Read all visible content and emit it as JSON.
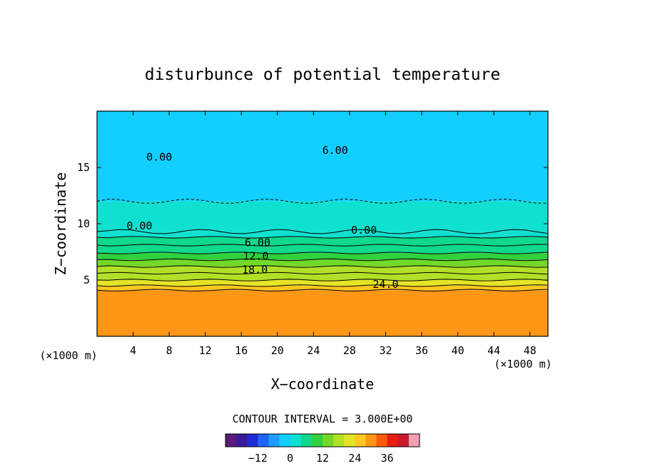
{
  "chart_data": {
    "type": "heatmap",
    "title": "disturbunce of potential temperature",
    "xlabel": "X−coordinate",
    "ylabel": "Z−coordinate",
    "x_unit": "(×1000 m)",
    "y_unit": "(×1000 m)",
    "xlim": [
      0,
      50
    ],
    "ylim": [
      0,
      20
    ],
    "x_ticks": [
      4,
      8,
      12,
      16,
      20,
      24,
      28,
      32,
      36,
      40,
      44,
      48
    ],
    "y_ticks": [
      5,
      10,
      15
    ],
    "contour_interval_text": "CONTOUR INTERVAL = 3.000E+00",
    "contour_labels": [
      {
        "text": "0.00",
        "x": 6.9,
        "y": 15.6
      },
      {
        "text": "6.00",
        "x": 26.4,
        "y": 16.2
      },
      {
        "text": "0.00",
        "x": 4.7,
        "y": 9.5
      },
      {
        "text": "0.00",
        "x": 29.6,
        "y": 9.1
      },
      {
        "text": "6.00",
        "x": 17.8,
        "y": 8.0
      },
      {
        "text": "12.0",
        "x": 17.6,
        "y": 6.8
      },
      {
        "text": "18.0",
        "x": 17.5,
        "y": 5.6
      },
      {
        "text": "24.0",
        "x": 32.0,
        "y": 4.3
      }
    ],
    "layers": [
      {
        "z_bottom": 0,
        "z_top": 4.1,
        "value": 28
      },
      {
        "z_bottom": 4.1,
        "z_top": 4.5,
        "value": 26
      },
      {
        "z_bottom": 4.5,
        "z_top": 5.0,
        "value": 22
      },
      {
        "z_bottom": 5.0,
        "z_top": 5.6,
        "value": 19
      },
      {
        "z_bottom": 5.6,
        "z_top": 6.2,
        "value": 16
      },
      {
        "z_bottom": 6.2,
        "z_top": 6.8,
        "value": 13
      },
      {
        "z_bottom": 6.8,
        "z_top": 7.4,
        "value": 10
      },
      {
        "z_bottom": 7.4,
        "z_top": 8.1,
        "value": 7
      },
      {
        "z_bottom": 8.1,
        "z_top": 8.8,
        "value": 4
      },
      {
        "z_bottom": 8.8,
        "z_top": 9.3,
        "value": 2
      },
      {
        "z_bottom": 9.3,
        "z_top": 12.0,
        "value": 0
      },
      {
        "z_bottom": 12.0,
        "z_top": 20.0,
        "value": -3
      }
    ],
    "colorbar": {
      "min": -24,
      "max": 48,
      "tick_labels": [
        "−12",
        "0",
        "12",
        "24",
        "36"
      ],
      "tick_values": [
        -12,
        0,
        12,
        24,
        36
      ],
      "colors": [
        "#5a1a78",
        "#3a1a96",
        "#1e2bd2",
        "#1e63ff",
        "#1e9bff",
        "#12cfff",
        "#10e0d0",
        "#10d88c",
        "#30d040",
        "#74d82a",
        "#b2e028",
        "#e4e428",
        "#ffc820",
        "#ff9616",
        "#ff5a0e",
        "#e81e14",
        "#c81a2a",
        "#f0a0b4"
      ]
    }
  }
}
